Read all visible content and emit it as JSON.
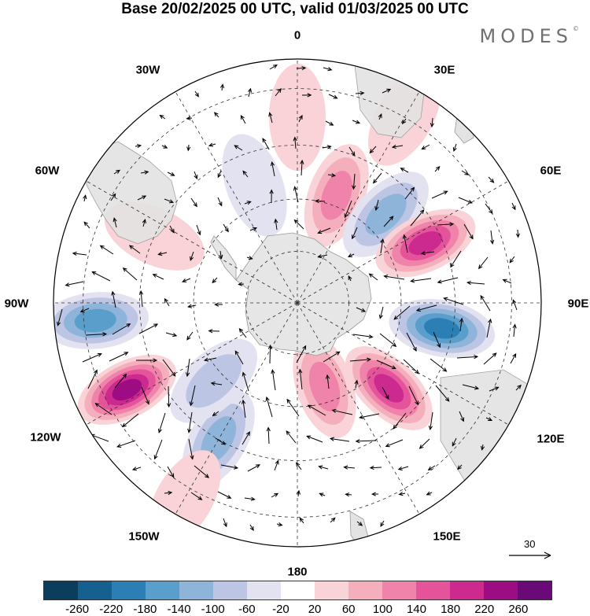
{
  "title": "Base 20/02/2025 00 UTC, valid 01/03/2025 00 UTC",
  "brand": "MODES",
  "brand_mark": "©",
  "longitude_labels": {
    "lon_0": "0",
    "lon_30e": "30E",
    "lon_60e": "60E",
    "lon_90e": "90E",
    "lon_120e": "120E",
    "lon_150e": "150E",
    "lon_180": "180",
    "lon_150w": "150W",
    "lon_120w": "120W",
    "lon_90w": "90W",
    "lon_60w": "60W",
    "lon_30w": "30W"
  },
  "reference_vector": "30",
  "colorbar": {
    "colors": [
      "#0b3d5c",
      "#15608f",
      "#2b7fb5",
      "#5a9fcc",
      "#8fb4da",
      "#bcc5e3",
      "#e3e2f1",
      "#ffffff",
      "#f9d3d7",
      "#f5aebc",
      "#ef83a9",
      "#e5539b",
      "#cc2a8f",
      "#9e0c83",
      "#6a0a78"
    ],
    "ticks": [
      "-260",
      "-220",
      "-180",
      "-140",
      "-100",
      "-60",
      "-20",
      "20",
      "60",
      "100",
      "140",
      "180",
      "220",
      "260"
    ]
  },
  "map": {
    "projection": "south-polar-stereographic",
    "anomalies": [
      {
        "lon": 20,
        "colat": 22,
        "value": 150
      },
      {
        "lon": 0,
        "colat": 35,
        "value": 60
      },
      {
        "lon": 45,
        "colat": 24,
        "value": -150
      },
      {
        "lon": 65,
        "colat": 27,
        "value": 230
      },
      {
        "lon": 100,
        "colat": 28,
        "value": -220
      },
      {
        "lon": 133,
        "colat": 24,
        "value": 200
      },
      {
        "lon": 162,
        "colat": 17,
        "value": 150
      },
      {
        "lon": -150,
        "colat": 30,
        "value": -120
      },
      {
        "lon": -133,
        "colat": 22,
        "value": -90
      },
      {
        "lon": -150,
        "colat": 42,
        "value": 60
      },
      {
        "lon": -117,
        "colat": 36,
        "value": 250
      },
      {
        "lon": -95,
        "colat": 38,
        "value": -190
      },
      {
        "lon": -65,
        "colat": 30,
        "value": 60
      },
      {
        "lon": -20,
        "colat": 24,
        "value": -40
      },
      {
        "lon": 30,
        "colat": 40,
        "value": 60
      }
    ]
  }
}
